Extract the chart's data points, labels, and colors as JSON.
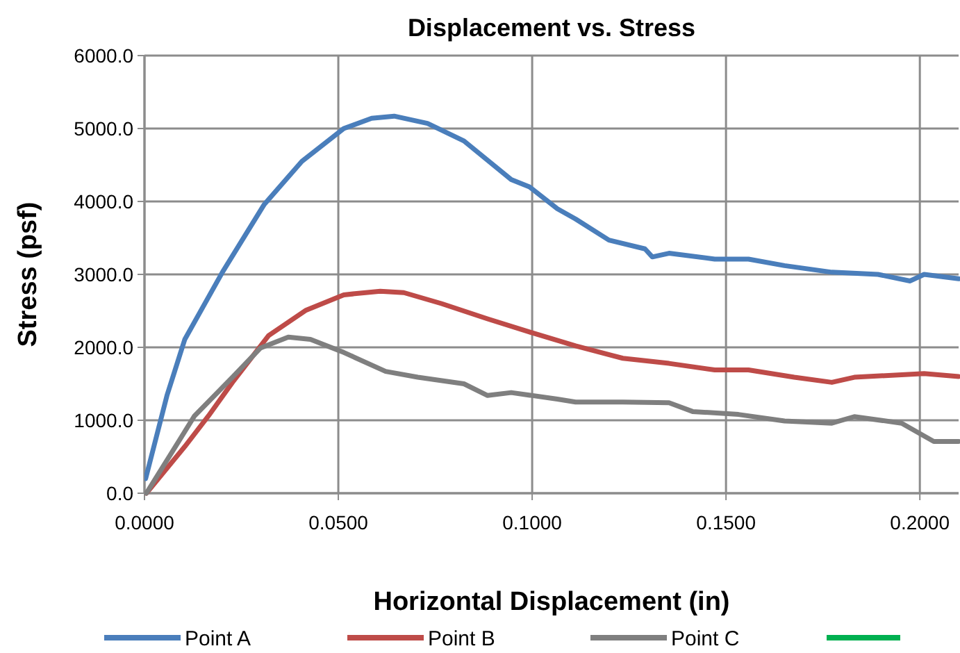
{
  "chart_data": {
    "type": "line",
    "title": "Displacement vs. Stress",
    "xlabel": "Horizontal Displacement (in)",
    "ylabel": "Stress (psf)",
    "xlim": [
      0,
      0.21
    ],
    "xticks": [
      {
        "value": 0,
        "label": "0.0000"
      },
      {
        "value": 0.05,
        "label": "0.0500"
      },
      {
        "value": 0.1,
        "label": "0.1000"
      },
      {
        "value": 0.15,
        "label": "0.1500"
      },
      {
        "value": 0.2,
        "label": "0.2000"
      }
    ],
    "ylim": [
      0,
      6000
    ],
    "yticks": [
      {
        "value": 0,
        "label": "0.0"
      },
      {
        "value": 1000,
        "label": "1000.0"
      },
      {
        "value": 2000,
        "label": "2000.0"
      },
      {
        "value": 3000,
        "label": "3000.0"
      },
      {
        "value": 4000,
        "label": "4000.0"
      },
      {
        "value": 5000,
        "label": "5000.0"
      },
      {
        "value": 6000,
        "label": "6000.0"
      }
    ],
    "grid": true,
    "legend": "bottom",
    "marker": "none",
    "line_style": "solid",
    "series": [
      {
        "name": "Point A",
        "color": "#4a7ebb",
        "x": [
          0.0003,
          0.0058,
          0.0104,
          0.0201,
          0.0309,
          0.0406,
          0.0514,
          0.0586,
          0.0644,
          0.073,
          0.0824,
          0.0946,
          0.0993,
          0.1065,
          0.1112,
          0.1198,
          0.1291,
          0.131,
          0.1353,
          0.1471,
          0.1558,
          0.1651,
          0.1773,
          0.1892,
          0.1975,
          0.2011,
          0.21
        ],
        "values": [
          200,
          1340,
          2110,
          3030,
          3960,
          4550,
          5000,
          5140,
          5170,
          5070,
          4830,
          4300,
          4200,
          3900,
          3760,
          3470,
          3350,
          3240,
          3290,
          3210,
          3210,
          3120,
          3030,
          3000,
          2910,
          3000,
          2940
        ]
      },
      {
        "name": "Point B",
        "color": "#be4b48",
        "x": [
          0.0005,
          0.0104,
          0.0165,
          0.0227,
          0.032,
          0.0417,
          0.0514,
          0.0608,
          0.0669,
          0.0766,
          0.0885,
          0.0993,
          0.1112,
          0.1234,
          0.1353,
          0.1471,
          0.1558,
          0.1676,
          0.1773,
          0.1831,
          0.2011,
          0.21
        ],
        "values": [
          0,
          640,
          1060,
          1520,
          2160,
          2510,
          2720,
          2770,
          2750,
          2600,
          2390,
          2210,
          2020,
          1850,
          1780,
          1690,
          1690,
          1590,
          1520,
          1590,
          1640,
          1600
        ]
      },
      {
        "name": "Point C",
        "color": "#7f7f7f",
        "x": [
          0.0005,
          0.0129,
          0.0227,
          0.0299,
          0.0371,
          0.0428,
          0.0514,
          0.0622,
          0.0705,
          0.0824,
          0.0885,
          0.0946,
          0.1065,
          0.1112,
          0.1234,
          0.1353,
          0.1414,
          0.1532,
          0.1651,
          0.1773,
          0.1831,
          0.1953,
          0.2036,
          0.21
        ],
        "values": [
          0,
          1060,
          1590,
          1990,
          2140,
          2110,
          1930,
          1670,
          1590,
          1500,
          1340,
          1380,
          1290,
          1250,
          1250,
          1240,
          1120,
          1080,
          990,
          960,
          1050,
          960,
          710,
          710
        ]
      }
    ]
  }
}
